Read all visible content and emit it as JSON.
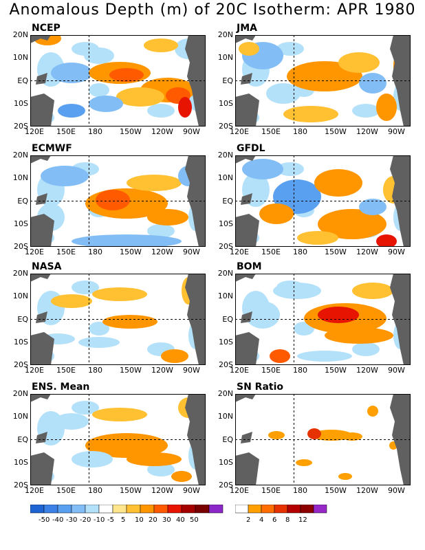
{
  "title": "Anomalous Depth (m) of 20C Isotherm: APR 1980",
  "panels": [
    {
      "name": "NCEP"
    },
    {
      "name": "JMA"
    },
    {
      "name": "ECMWF"
    },
    {
      "name": "GFDL"
    },
    {
      "name": "NASA"
    },
    {
      "name": "BOM"
    },
    {
      "name": "ENS. Mean"
    },
    {
      "name": "SN Ratio"
    }
  ],
  "lat_labels": [
    "20N",
    "10N",
    "EQ",
    "10S",
    "20S"
  ],
  "lon_labels": [
    "120E",
    "150E",
    "180",
    "150W",
    "120W",
    "90W"
  ],
  "colors": {
    "land": "#606060",
    "anomaly_scale": [
      "#1e64d2",
      "#3c82e6",
      "#5aa0f0",
      "#82bef5",
      "#b4e1fa",
      "#ffffff",
      "#ffe68c",
      "#ffc032",
      "#ff9600",
      "#ff5a00",
      "#e61400",
      "#a50000",
      "#780000",
      "#8c28c8"
    ],
    "sn_scale": [
      "#ffffff",
      "#ffa000",
      "#ff6e00",
      "#e63200",
      "#b40000",
      "#8c0000",
      "#9628c8"
    ]
  },
  "colorbar_anomaly": {
    "labels": [
      "-50",
      "-40",
      "-30",
      "-20",
      "-10",
      "-5",
      "5",
      "10",
      "20",
      "30",
      "40",
      "50"
    ]
  },
  "colorbar_sn": {
    "labels": [
      "2",
      "4",
      "6",
      "8",
      "12"
    ]
  },
  "chart_data": {
    "type": "map",
    "variable": "Anomalous Depth (m) of 20C Isotherm",
    "period": "APR 1980",
    "lon_range": [
      "120E",
      "70W"
    ],
    "lat_range": [
      "20S",
      "20N"
    ],
    "panels": [
      {
        "name": "NCEP",
        "features": [
          {
            "region": "central equatorial Pacific",
            "sign": "positive"
          },
          {
            "region": "eastern Pacific near 10S",
            "sign": "positive"
          },
          {
            "region": "western Pacific",
            "sign": "negative"
          }
        ]
      },
      {
        "name": "JMA",
        "features": [
          {
            "region": "central equatorial Pacific",
            "sign": "positive"
          },
          {
            "region": "western Pacific",
            "sign": "negative"
          }
        ]
      },
      {
        "name": "ECMWF",
        "features": [
          {
            "region": "central equatorial Pacific",
            "sign": "positive"
          },
          {
            "region": "southwest Pacific near 20S",
            "sign": "negative"
          }
        ]
      },
      {
        "name": "GFDL",
        "features": [
          {
            "region": "eastern Pacific near 15S",
            "sign": "positive"
          },
          {
            "region": "western Pacific",
            "sign": "negative"
          }
        ]
      },
      {
        "name": "NASA",
        "features": [
          {
            "region": "central equatorial Pacific",
            "sign": "weak positive"
          }
        ]
      },
      {
        "name": "BOM",
        "features": [
          {
            "region": "central equatorial Pacific",
            "sign": "positive"
          }
        ]
      },
      {
        "name": "ENS. Mean",
        "features": [
          {
            "region": "central equatorial Pacific",
            "sign": "positive"
          },
          {
            "region": "western Pacific",
            "sign": "weak negative"
          }
        ]
      },
      {
        "name": "SN Ratio",
        "features": [
          {
            "region": "central equatorial Pacific near 180-150W",
            "sign": "high signal"
          }
        ]
      }
    ]
  }
}
